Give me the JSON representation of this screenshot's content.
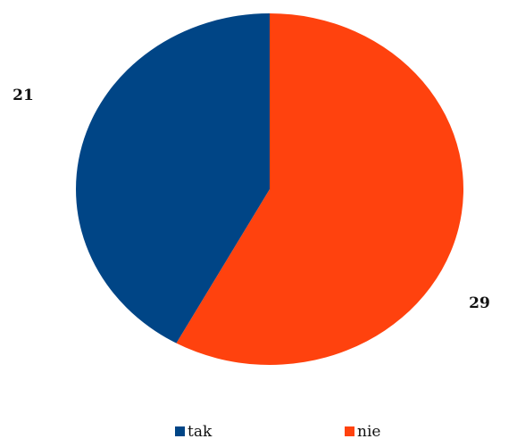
{
  "chart_data": {
    "type": "pie",
    "categories": [
      "tak",
      "nie"
    ],
    "values": [
      21,
      29
    ],
    "colors": [
      "#004586",
      "#ff420e"
    ],
    "data_labels": [
      "21",
      "29"
    ],
    "legend": {
      "placement": "bottom",
      "entries": [
        "tak",
        "nie"
      ]
    },
    "start_angle_deg": 0,
    "direction": "clockwise"
  }
}
